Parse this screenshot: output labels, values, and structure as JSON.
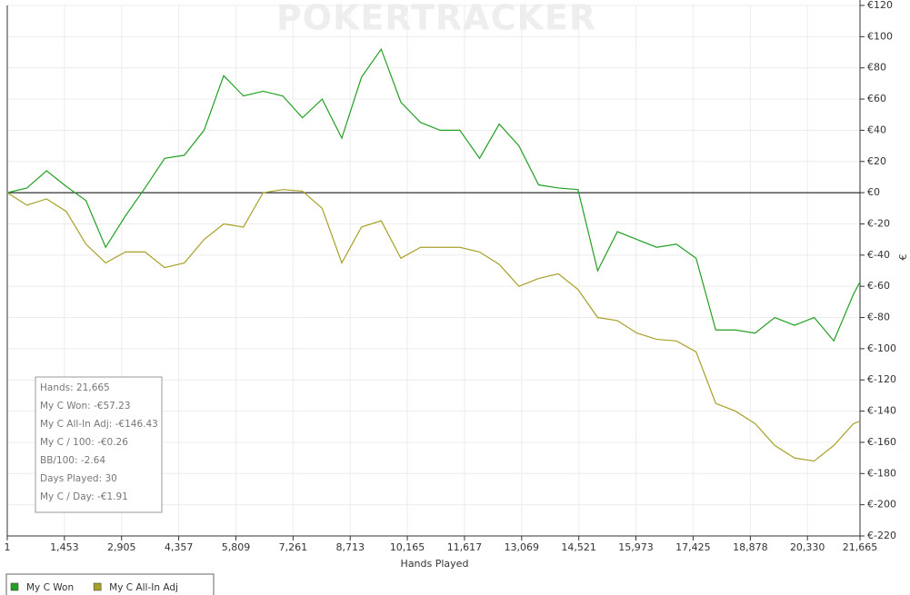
{
  "chart_data": {
    "type": "line",
    "watermark": "POKERTRACKER",
    "x_label": "Hands Played",
    "y_label": "€",
    "x": [
      1,
      500,
      1000,
      1500,
      2000,
      2500,
      3000,
      3500,
      4000,
      4500,
      5000,
      5500,
      6000,
      6500,
      7000,
      7500,
      8000,
      8500,
      9000,
      9500,
      10000,
      10500,
      11000,
      11500,
      12000,
      12500,
      13000,
      13500,
      14000,
      14500,
      15000,
      15500,
      16000,
      16500,
      17000,
      17500,
      18000,
      18500,
      19000,
      19500,
      20000,
      20500,
      21000,
      21500,
      21665
    ],
    "series": [
      {
        "name": "My C Won",
        "color": "#22a022",
        "values": [
          0,
          3,
          14,
          4,
          -5,
          -35,
          -15,
          3,
          22,
          24,
          40,
          75,
          62,
          65,
          62,
          48,
          60,
          35,
          74,
          92,
          58,
          45,
          40,
          40,
          22,
          44,
          30,
          5,
          3,
          2,
          -50,
          -25,
          -30,
          -35,
          -33,
          -42,
          -88,
          -88,
          -90,
          -80,
          -85,
          -80,
          -95,
          -65,
          -57.23
        ]
      },
      {
        "name": "My C All-In Adj",
        "color": "#a8a028",
        "values": [
          0,
          -8,
          -4,
          -12,
          -33,
          -45,
          -38,
          -38,
          -48,
          -45,
          -30,
          -20,
          -22,
          0,
          2,
          1,
          -10,
          -45,
          -22,
          -18,
          -42,
          -35,
          -35,
          -35,
          -38,
          -46,
          -60,
          -55,
          -52,
          -62,
          -80,
          -82,
          -90,
          -94,
          -95,
          -102,
          -135,
          -140,
          -148,
          -162,
          -170,
          -172,
          -162,
          -148,
          -146.43
        ]
      }
    ],
    "xlim": [
      1,
      21665
    ],
    "xticks": [
      1,
      {
        "value": 1453,
        "label": "1,453"
      },
      {
        "value": 2905,
        "label": "2,905"
      },
      {
        "value": 4357,
        "label": "4,357"
      },
      {
        "value": 5809,
        "label": "5,809"
      },
      {
        "value": 7261,
        "label": "7,261"
      },
      {
        "value": 8713,
        "label": "8,713"
      },
      {
        "value": 10165,
        "label": "10,165"
      },
      {
        "value": 11617,
        "label": "11,617"
      },
      {
        "value": 13069,
        "label": "13,069"
      },
      {
        "value": 14521,
        "label": "14,521"
      },
      {
        "value": 15973,
        "label": "15,973"
      },
      {
        "value": 17425,
        "label": "17,425"
      },
      {
        "value": 18878,
        "label": "18,878"
      },
      {
        "value": 20330,
        "label": "20,330"
      },
      {
        "value": 21665,
        "label": "21,665"
      }
    ],
    "ylim": [
      -220,
      120
    ],
    "yticks": [
      {
        "value": 120,
        "label": "€120"
      },
      {
        "value": 100,
        "label": "€100"
      },
      {
        "value": 80,
        "label": "€80"
      },
      {
        "value": 60,
        "label": "€60"
      },
      {
        "value": 40,
        "label": "€40"
      },
      {
        "value": 20,
        "label": "€20"
      },
      {
        "value": 0,
        "label": "€0"
      },
      {
        "value": -20,
        "label": "€-20"
      },
      {
        "value": -40,
        "label": "€-40"
      },
      {
        "value": -60,
        "label": "€-60"
      },
      {
        "value": -80,
        "label": "€-80"
      },
      {
        "value": -100,
        "label": "€-100"
      },
      {
        "value": -120,
        "label": "€-120"
      },
      {
        "value": -140,
        "label": "€-140"
      },
      {
        "value": -160,
        "label": "€-160"
      },
      {
        "value": -180,
        "label": "€-180"
      },
      {
        "value": -200,
        "label": "€-200"
      },
      {
        "value": -220,
        "label": "€-220"
      }
    ],
    "grid": true,
    "stats": [
      "Hands: 21,665",
      "My C Won: -€57.23",
      "My C All-In Adj: -€146.43",
      "My C / 100: -€0.26",
      "BB/100: -2.64",
      "Days Played: 30",
      "My C / Day: -€1.91"
    ]
  }
}
